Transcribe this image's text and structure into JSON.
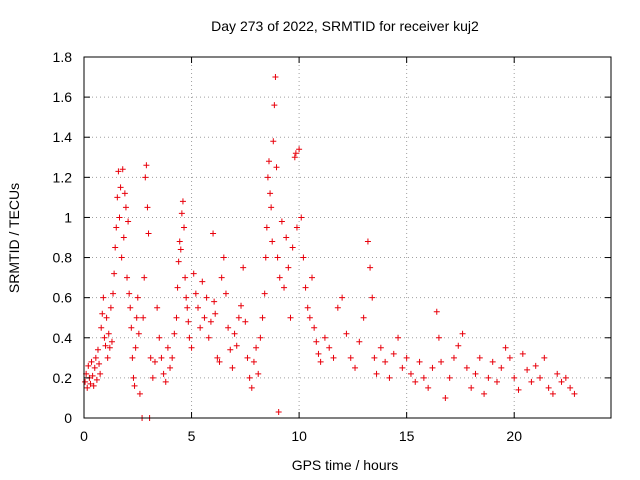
{
  "chart_data": {
    "type": "scatter",
    "title": "Day 273 of 2022, SRMTID for receiver kuj2",
    "xlabel": "GPS time / hours",
    "ylabel": "SRMTID / TECUs",
    "xlim": [
      0,
      24.5
    ],
    "ylim": [
      0,
      1.8
    ],
    "xticks": [
      0,
      5,
      10,
      15,
      20
    ],
    "xtick_labels": [
      "0",
      "5",
      "10",
      "15",
      "20"
    ],
    "yticks": [
      0,
      0.2,
      0.4,
      0.6,
      0.8,
      1.0,
      1.2,
      1.4,
      1.6,
      1.8
    ],
    "ytick_labels": [
      "0",
      "0.2",
      "0.4",
      "0.6",
      "0.8",
      "1",
      "1.2",
      "1.4",
      "1.6",
      "1.8"
    ],
    "grid": true,
    "marker": "plus",
    "series": [
      {
        "name": "SRMTID",
        "color": "#e8000b",
        "points": [
          [
            0.05,
            0.18
          ],
          [
            0.1,
            0.22
          ],
          [
            0.15,
            0.15
          ],
          [
            0.2,
            0.26
          ],
          [
            0.25,
            0.2
          ],
          [
            0.3,
            0.17
          ],
          [
            0.35,
            0.28
          ],
          [
            0.4,
            0.21
          ],
          [
            0.45,
            0.16
          ],
          [
            0.5,
            0.25
          ],
          [
            0.55,
            0.3
          ],
          [
            0.6,
            0.19
          ],
          [
            0.65,
            0.34
          ],
          [
            0.7,
            0.27
          ],
          [
            0.75,
            0.22
          ],
          [
            0.8,
            0.45
          ],
          [
            0.85,
            0.52
          ],
          [
            0.9,
            0.6
          ],
          [
            0.95,
            0.4
          ],
          [
            1.0,
            0.36
          ],
          [
            1.05,
            0.5
          ],
          [
            1.1,
            0.3
          ],
          [
            1.15,
            0.42
          ],
          [
            1.2,
            0.35
          ],
          [
            1.25,
            0.55
          ],
          [
            1.3,
            0.38
          ],
          [
            1.35,
            0.62
          ],
          [
            1.4,
            0.72
          ],
          [
            1.45,
            0.85
          ],
          [
            1.5,
            0.95
          ],
          [
            1.55,
            1.1
          ],
          [
            1.6,
            1.23
          ],
          [
            1.65,
            1.0
          ],
          [
            1.7,
            1.15
          ],
          [
            1.75,
            0.8
          ],
          [
            1.8,
            1.24
          ],
          [
            1.85,
            0.9
          ],
          [
            1.9,
            1.12
          ],
          [
            1.95,
            1.05
          ],
          [
            2.0,
            0.7
          ],
          [
            2.05,
            0.98
          ],
          [
            2.1,
            0.62
          ],
          [
            2.15,
            0.55
          ],
          [
            2.2,
            0.45
          ],
          [
            2.25,
            0.3
          ],
          [
            2.3,
            0.2
          ],
          [
            2.35,
            0.16
          ],
          [
            2.4,
            0.35
          ],
          [
            2.45,
            0.5
          ],
          [
            2.5,
            0.6
          ],
          [
            2.55,
            0.42
          ],
          [
            2.6,
            0.12
          ],
          [
            2.7,
            0.0
          ],
          [
            2.75,
            0.5
          ],
          [
            2.8,
            0.7
          ],
          [
            2.85,
            1.2
          ],
          [
            2.9,
            1.26
          ],
          [
            2.95,
            1.05
          ],
          [
            3.0,
            0.92
          ],
          [
            3.05,
            0.0
          ],
          [
            3.1,
            0.3
          ],
          [
            3.2,
            0.2
          ],
          [
            3.3,
            0.28
          ],
          [
            3.4,
            0.55
          ],
          [
            3.5,
            0.4
          ],
          [
            3.6,
            0.3
          ],
          [
            3.7,
            0.22
          ],
          [
            3.8,
            0.18
          ],
          [
            3.9,
            0.35
          ],
          [
            4.0,
            0.25
          ],
          [
            4.1,
            0.3
          ],
          [
            4.2,
            0.42
          ],
          [
            4.3,
            0.5
          ],
          [
            4.35,
            0.65
          ],
          [
            4.4,
            0.78
          ],
          [
            4.45,
            0.88
          ],
          [
            4.5,
            0.84
          ],
          [
            4.55,
            1.02
          ],
          [
            4.6,
            1.08
          ],
          [
            4.65,
            0.95
          ],
          [
            4.7,
            0.7
          ],
          [
            4.75,
            0.6
          ],
          [
            4.8,
            0.55
          ],
          [
            4.85,
            0.48
          ],
          [
            4.9,
            0.4
          ],
          [
            5.0,
            0.35
          ],
          [
            5.1,
            0.72
          ],
          [
            5.2,
            0.62
          ],
          [
            5.3,
            0.55
          ],
          [
            5.4,
            0.45
          ],
          [
            5.5,
            0.68
          ],
          [
            5.6,
            0.5
          ],
          [
            5.7,
            0.6
          ],
          [
            5.8,
            0.4
          ],
          [
            5.9,
            0.48
          ],
          [
            6.0,
            0.92
          ],
          [
            6.05,
            0.58
          ],
          [
            6.1,
            0.52
          ],
          [
            6.2,
            0.3
          ],
          [
            6.3,
            0.28
          ],
          [
            6.4,
            0.7
          ],
          [
            6.5,
            0.8
          ],
          [
            6.6,
            0.62
          ],
          [
            6.7,
            0.45
          ],
          [
            6.8,
            0.34
          ],
          [
            6.9,
            0.25
          ],
          [
            7.0,
            0.42
          ],
          [
            7.1,
            0.36
          ],
          [
            7.2,
            0.5
          ],
          [
            7.3,
            0.56
          ],
          [
            7.4,
            0.75
          ],
          [
            7.5,
            0.48
          ],
          [
            7.6,
            0.3
          ],
          [
            7.7,
            0.2
          ],
          [
            7.8,
            0.15
          ],
          [
            7.9,
            0.28
          ],
          [
            8.0,
            0.35
          ],
          [
            8.1,
            0.22
          ],
          [
            8.2,
            0.4
          ],
          [
            8.3,
            0.5
          ],
          [
            8.4,
            0.62
          ],
          [
            8.45,
            0.8
          ],
          [
            8.5,
            0.95
          ],
          [
            8.55,
            1.2
          ],
          [
            8.6,
            1.28
          ],
          [
            8.65,
            1.12
          ],
          [
            8.7,
            1.05
          ],
          [
            8.75,
            0.88
          ],
          [
            8.8,
            1.38
          ],
          [
            8.85,
            1.56
          ],
          [
            8.9,
            1.7
          ],
          [
            8.95,
            1.25
          ],
          [
            9.0,
            0.8
          ],
          [
            9.05,
            0.03
          ],
          [
            9.1,
            0.7
          ],
          [
            9.2,
            0.98
          ],
          [
            9.3,
            0.65
          ],
          [
            9.4,
            0.9
          ],
          [
            9.5,
            0.75
          ],
          [
            9.6,
            0.5
          ],
          [
            9.7,
            0.85
          ],
          [
            9.8,
            1.3
          ],
          [
            9.85,
            1.32
          ],
          [
            9.9,
            0.95
          ],
          [
            10.0,
            1.34
          ],
          [
            10.1,
            1.0
          ],
          [
            10.2,
            0.8
          ],
          [
            10.3,
            0.65
          ],
          [
            10.4,
            0.55
          ],
          [
            10.5,
            0.5
          ],
          [
            10.6,
            0.7
          ],
          [
            10.7,
            0.45
          ],
          [
            10.8,
            0.38
          ],
          [
            10.9,
            0.32
          ],
          [
            11.0,
            0.28
          ],
          [
            11.2,
            0.4
          ],
          [
            11.4,
            0.35
          ],
          [
            11.6,
            0.3
          ],
          [
            11.8,
            0.55
          ],
          [
            12.0,
            0.6
          ],
          [
            12.2,
            0.42
          ],
          [
            12.4,
            0.3
          ],
          [
            12.6,
            0.25
          ],
          [
            12.8,
            0.38
          ],
          [
            13.0,
            0.5
          ],
          [
            13.2,
            0.88
          ],
          [
            13.3,
            0.75
          ],
          [
            13.4,
            0.6
          ],
          [
            13.5,
            0.3
          ],
          [
            13.6,
            0.22
          ],
          [
            13.8,
            0.35
          ],
          [
            14.0,
            0.28
          ],
          [
            14.2,
            0.2
          ],
          [
            14.4,
            0.32
          ],
          [
            14.6,
            0.4
          ],
          [
            14.8,
            0.25
          ],
          [
            15.0,
            0.3
          ],
          [
            15.2,
            0.22
          ],
          [
            15.4,
            0.18
          ],
          [
            15.6,
            0.28
          ],
          [
            15.8,
            0.2
          ],
          [
            16.0,
            0.15
          ],
          [
            16.2,
            0.25
          ],
          [
            16.4,
            0.53
          ],
          [
            16.5,
            0.4
          ],
          [
            16.6,
            0.28
          ],
          [
            16.8,
            0.1
          ],
          [
            17.0,
            0.2
          ],
          [
            17.2,
            0.3
          ],
          [
            17.4,
            0.36
          ],
          [
            17.6,
            0.42
          ],
          [
            17.8,
            0.25
          ],
          [
            18.0,
            0.15
          ],
          [
            18.2,
            0.22
          ],
          [
            18.4,
            0.3
          ],
          [
            18.6,
            0.12
          ],
          [
            18.8,
            0.2
          ],
          [
            19.0,
            0.28
          ],
          [
            19.2,
            0.18
          ],
          [
            19.4,
            0.25
          ],
          [
            19.6,
            0.35
          ],
          [
            19.8,
            0.3
          ],
          [
            20.0,
            0.2
          ],
          [
            20.2,
            0.14
          ],
          [
            20.4,
            0.32
          ],
          [
            20.6,
            0.24
          ],
          [
            20.8,
            0.18
          ],
          [
            21.0,
            0.26
          ],
          [
            21.2,
            0.2
          ],
          [
            21.4,
            0.3
          ],
          [
            21.6,
            0.15
          ],
          [
            21.8,
            0.12
          ],
          [
            22.0,
            0.22
          ],
          [
            22.2,
            0.18
          ],
          [
            22.4,
            0.2
          ],
          [
            22.6,
            0.15
          ],
          [
            22.8,
            0.12
          ]
        ]
      }
    ]
  }
}
